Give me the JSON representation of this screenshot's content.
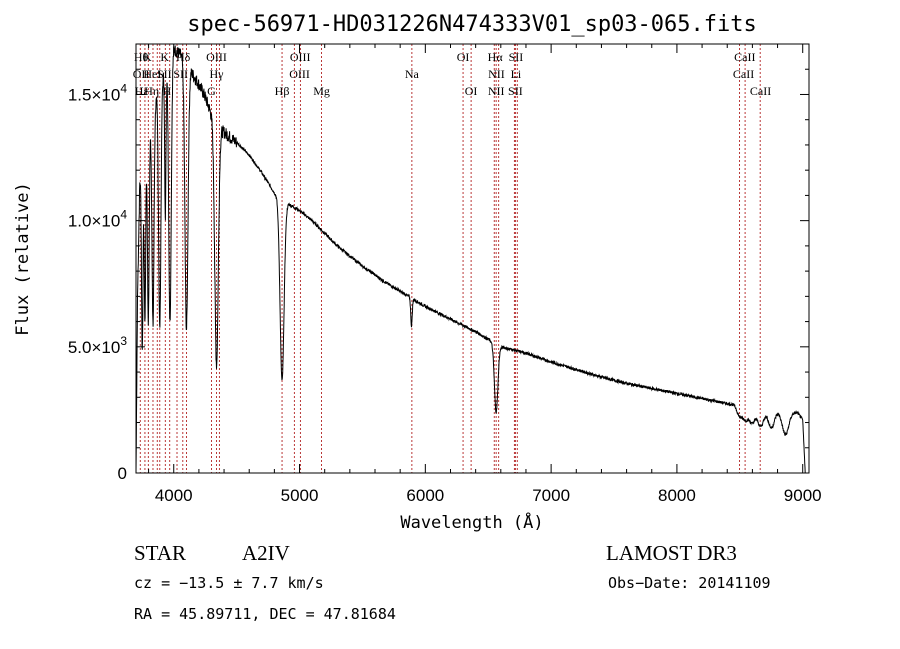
{
  "chart_data": {
    "type": "line",
    "title": "spec-56971-HD031226N474333V01_sp03-065.fits",
    "xlabel": "Wavelength (Å)",
    "ylabel": "Flux (relative)",
    "xlim": [
      3700,
      9050
    ],
    "ylim": [
      0,
      17000
    ],
    "xticks": [
      4000,
      5000,
      6000,
      7000,
      8000,
      9000
    ],
    "xtick_labels": [
      "4000",
      "5000",
      "6000",
      "7000",
      "8000",
      "9000"
    ],
    "yticks": [
      0,
      5000,
      10000,
      15000
    ],
    "ytick_labels": [
      {
        "mantissa": "0",
        "exp": ""
      },
      {
        "mantissa": "5.0×10",
        "exp": "3"
      },
      {
        "mantissa": "1.0×10",
        "exp": "4"
      },
      {
        "mantissa": "1.5×10",
        "exp": "4"
      }
    ],
    "continuum": [
      [
        3700,
        0
      ],
      [
        3712,
        7000
      ],
      [
        3730,
        11500
      ],
      [
        3760,
        12800
      ],
      [
        3800,
        13600
      ],
      [
        3850,
        14600
      ],
      [
        3900,
        15500
      ],
      [
        3950,
        16300
      ],
      [
        4000,
        16800
      ],
      [
        4050,
        16600
      ],
      [
        4100,
        16200
      ],
      [
        4150,
        15800
      ],
      [
        4200,
        15400
      ],
      [
        4250,
        14900
      ],
      [
        4300,
        14200
      ],
      [
        4350,
        13700
      ],
      [
        4400,
        13500
      ],
      [
        4500,
        13100
      ],
      [
        4600,
        12600
      ],
      [
        4700,
        11900
      ],
      [
        4800,
        11100
      ],
      [
        4900,
        10700
      ],
      [
        5000,
        10400
      ],
      [
        5100,
        10000
      ],
      [
        5200,
        9500
      ],
      [
        5300,
        9000
      ],
      [
        5500,
        8200
      ],
      [
        5700,
        7500
      ],
      [
        5900,
        6900
      ],
      [
        6000,
        6600
      ],
      [
        6200,
        6100
      ],
      [
        6400,
        5600
      ],
      [
        6600,
        5000
      ],
      [
        6800,
        4750
      ],
      [
        7000,
        4400
      ],
      [
        7200,
        4100
      ],
      [
        7400,
        3800
      ],
      [
        7600,
        3550
      ],
      [
        7800,
        3350
      ],
      [
        8000,
        3150
      ],
      [
        8200,
        2950
      ],
      [
        8400,
        2750
      ],
      [
        8600,
        2600
      ],
      [
        8800,
        2450
      ],
      [
        8960,
        2380
      ],
      [
        9000,
        2100
      ],
      [
        9020,
        0
      ]
    ],
    "absorption_lines": [
      {
        "center": 3750,
        "depth": 7500,
        "width": 6
      },
      {
        "center": 3771,
        "depth": 7000,
        "width": 6
      },
      {
        "center": 3798,
        "depth": 7500,
        "width": 7
      },
      {
        "center": 3835,
        "depth": 8500,
        "width": 8
      },
      {
        "center": 3889,
        "depth": 9500,
        "width": 9
      },
      {
        "center": 3933,
        "depth": 6000,
        "width": 5
      },
      {
        "center": 3970,
        "depth": 10500,
        "width": 10
      },
      {
        "center": 4101,
        "depth": 10500,
        "width": 12
      },
      {
        "center": 4340,
        "depth": 9500,
        "width": 14
      },
      {
        "center": 4861,
        "depth": 7200,
        "width": 16
      },
      {
        "center": 5890,
        "depth": 1100,
        "width": 6
      },
      {
        "center": 6563,
        "depth": 2700,
        "width": 14
      },
      {
        "center": 8498,
        "depth": 400,
        "width": 20
      },
      {
        "center": 8545,
        "depth": 500,
        "width": 22
      },
      {
        "center": 8598,
        "depth": 600,
        "width": 22
      },
      {
        "center": 8665,
        "depth": 700,
        "width": 24
      },
      {
        "center": 8750,
        "depth": 700,
        "width": 24
      },
      {
        "center": 8863,
        "depth": 900,
        "width": 26
      }
    ],
    "line_markers": [
      {
        "wl": 3734,
        "label": "Hθ",
        "row": 0,
        "anchor": "middle"
      },
      {
        "wl": 3771,
        "label": "",
        "row": 0,
        "anchor": "middle"
      },
      {
        "wl": 3798,
        "label": "",
        "row": 0,
        "anchor": "middle"
      },
      {
        "wl": 3835,
        "label": "",
        "row": 0,
        "anchor": "middle"
      },
      {
        "wl": 3869,
        "label": "",
        "row": 0,
        "anchor": "middle"
      },
      {
        "wl": 3889,
        "label": "",
        "row": 0,
        "anchor": "middle"
      },
      {
        "wl": 3933,
        "label": "K",
        "row": 0,
        "anchor": "middle"
      },
      {
        "wl": 3968,
        "label": "",
        "row": 0,
        "anchor": "middle"
      },
      {
        "wl": 4026,
        "label": "Hδ",
        "row": 0,
        "anchor": "middle"
      },
      {
        "wl": 4072,
        "label": "",
        "row": 0,
        "anchor": "middle"
      },
      {
        "wl": 4101,
        "label": "",
        "row": 0,
        "anchor": "middle"
      },
      {
        "wl": 4300,
        "label": "",
        "row": 0,
        "anchor": "middle"
      },
      {
        "wl": 4340,
        "label": "",
        "row": 0,
        "anchor": "middle"
      },
      {
        "wl": 4363,
        "label": "OIII",
        "row": 0,
        "anchor": "middle"
      },
      {
        "wl": 4861,
        "label": "",
        "row": 0,
        "anchor": "middle"
      },
      {
        "wl": 4959,
        "label": "",
        "row": 0,
        "anchor": "middle"
      },
      {
        "wl": 5007,
        "label": "OIII",
        "row": 0,
        "anchor": "middle"
      },
      {
        "wl": 5175,
        "label": "",
        "row": 0,
        "anchor": "middle"
      },
      {
        "wl": 5893,
        "label": "",
        "row": 0,
        "anchor": "middle"
      },
      {
        "wl": 6300,
        "label": "OI",
        "row": 0,
        "anchor": "middle"
      },
      {
        "wl": 6364,
        "label": "",
        "row": 0,
        "anchor": "middle"
      },
      {
        "wl": 6548,
        "label": "",
        "row": 0,
        "anchor": "middle"
      },
      {
        "wl": 6563,
        "label": "Hα",
        "row": 0,
        "anchor": "middle"
      },
      {
        "wl": 6583,
        "label": "",
        "row": 0,
        "anchor": "middle"
      },
      {
        "wl": 6708,
        "label": "",
        "row": 0,
        "anchor": "middle"
      },
      {
        "wl": 6716,
        "label": "SII",
        "row": 0,
        "anchor": "middle"
      },
      {
        "wl": 6731,
        "label": "",
        "row": 0,
        "anchor": "middle"
      },
      {
        "wl": 8498,
        "label": "",
        "row": 0,
        "anchor": "middle"
      },
      {
        "wl": 8542,
        "label": "CaII",
        "row": 0,
        "anchor": "middle"
      },
      {
        "wl": 8662,
        "label": "",
        "row": 0,
        "anchor": "middle"
      }
    ],
    "line_labels": [
      {
        "wl": 3740,
        "label": "Hθ",
        "row": 0
      },
      {
        "wl": 3790,
        "label": "K",
        "row": 0
      },
      {
        "wl": 3928,
        "label": "K",
        "row": 0
      },
      {
        "wl": 4075,
        "label": "Hδ",
        "row": 0
      },
      {
        "wl": 4340,
        "label": "OIII",
        "row": 0
      },
      {
        "wl": 5005,
        "label": "OIII",
        "row": 0
      },
      {
        "wl": 6300,
        "label": "OI",
        "row": 0
      },
      {
        "wl": 6555,
        "label": "Hα",
        "row": 0
      },
      {
        "wl": 6720,
        "label": "SII",
        "row": 0
      },
      {
        "wl": 8540,
        "label": "CaII",
        "row": 0
      },
      {
        "wl": 3740,
        "label": "OII",
        "row": 1
      },
      {
        "wl": 3830,
        "label": "HeI",
        "row": 1
      },
      {
        "wl": 3925,
        "label": "SII",
        "row": 1
      },
      {
        "wl": 4055,
        "label": "SII",
        "row": 1
      },
      {
        "wl": 4340,
        "label": "Hγ",
        "row": 1
      },
      {
        "wl": 5000,
        "label": "OIII",
        "row": 1
      },
      {
        "wl": 5893,
        "label": "Na",
        "row": 1
      },
      {
        "wl": 6300,
        "label": "",
        "row": 1
      },
      {
        "wl": 6565,
        "label": "NII",
        "row": 1
      },
      {
        "wl": 6720,
        "label": "Li",
        "row": 1
      },
      {
        "wl": 8530,
        "label": "CaII",
        "row": 1
      },
      {
        "wl": 3745,
        "label": "Hε",
        "row": 2
      },
      {
        "wl": 3825,
        "label": "Hη",
        "row": 2
      },
      {
        "wl": 3945,
        "label": "H",
        "row": 2
      },
      {
        "wl": 4300,
        "label": "G",
        "row": 2
      },
      {
        "wl": 4861,
        "label": "Hβ",
        "row": 2
      },
      {
        "wl": 5175,
        "label": "Mg",
        "row": 2
      },
      {
        "wl": 6364,
        "label": "OI",
        "row": 2
      },
      {
        "wl": 6563,
        "label": "NII",
        "row": 2
      },
      {
        "wl": 6716,
        "label": "SII",
        "row": 2
      },
      {
        "wl": 8665,
        "label": "CaII",
        "row": 2
      }
    ]
  },
  "info": {
    "object_class": "STAR",
    "subclass": "A2IV",
    "survey": "LAMOST DR3",
    "cz": "cz = −13.5 ± 7.7 km/s",
    "obs_date": "Obs−Date: 20141109",
    "coords": "RA =  45.89711, DEC =  47.81684"
  },
  "colors": {
    "spectrum": "#000000",
    "marker": "#b22222",
    "axis": "#000000"
  }
}
